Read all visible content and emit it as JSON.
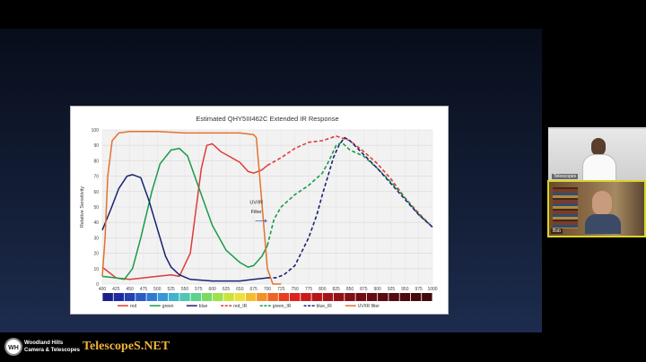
{
  "app": {
    "name": "video-call"
  },
  "slide": {
    "chart_data": {
      "type": "line",
      "title": "Estimated QHY5III462C Extended IR Response",
      "xlabel": "",
      "ylabel": "Relative Sensitivity",
      "xlim": [
        400,
        1000
      ],
      "ylim": [
        0,
        100
      ],
      "x_ticks": [
        "400",
        "425",
        "450",
        "475",
        "500",
        "525",
        "550",
        "575",
        "600",
        "625",
        "650",
        "675",
        "700",
        "725",
        "750",
        "775",
        "800",
        "825",
        "850",
        "875",
        "900",
        "925",
        "950",
        "975",
        "1000"
      ],
      "y_ticks": [
        "0",
        "10",
        "20",
        "30",
        "40",
        "50",
        "60",
        "70",
        "80",
        "90",
        "100"
      ],
      "grid": true,
      "legend_position": "bottom",
      "annotation": {
        "text_line1": "UV/IR",
        "text_line2": "Filter"
      },
      "series": [
        {
          "name": "red",
          "color": "#e03a3a",
          "style": "solid",
          "points": [
            [
              400,
              11
            ],
            [
              425,
              4
            ],
            [
              450,
              3
            ],
            [
              475,
              4
            ],
            [
              500,
              5
            ],
            [
              525,
              6
            ],
            [
              540,
              5
            ],
            [
              560,
              20
            ],
            [
              580,
              75
            ],
            [
              590,
              90
            ],
            [
              600,
              91
            ],
            [
              615,
              86
            ],
            [
              625,
              84
            ],
            [
              650,
              79
            ],
            [
              665,
              73
            ],
            [
              675,
              72
            ],
            [
              690,
              74
            ],
            [
              700,
              77
            ]
          ]
        },
        {
          "name": "green",
          "color": "#1a9a4a",
          "style": "solid",
          "points": [
            [
              400,
              5
            ],
            [
              425,
              4
            ],
            [
              440,
              3
            ],
            [
              455,
              10
            ],
            [
              470,
              30
            ],
            [
              490,
              60
            ],
            [
              505,
              78
            ],
            [
              525,
              87
            ],
            [
              540,
              88
            ],
            [
              555,
              83
            ],
            [
              575,
              63
            ],
            [
              600,
              38
            ],
            [
              625,
              22
            ],
            [
              650,
              14
            ],
            [
              665,
              11
            ],
            [
              675,
              12
            ],
            [
              690,
              18
            ],
            [
              700,
              25
            ]
          ]
        },
        {
          "name": "blue",
          "color": "#1b2370",
          "style": "solid",
          "points": [
            [
              400,
              35
            ],
            [
              415,
              48
            ],
            [
              430,
              62
            ],
            [
              445,
              70
            ],
            [
              455,
              71
            ],
            [
              470,
              69
            ],
            [
              485,
              54
            ],
            [
              500,
              36
            ],
            [
              515,
              18
            ],
            [
              525,
              11
            ],
            [
              540,
              6
            ],
            [
              560,
              3
            ],
            [
              600,
              2
            ],
            [
              650,
              2
            ],
            [
              675,
              3
            ],
            [
              700,
              4
            ]
          ]
        },
        {
          "name": "red_IR",
          "color": "#e03a3a",
          "style": "dashed",
          "points": [
            [
              700,
              77
            ],
            [
              725,
              82
            ],
            [
              750,
              88
            ],
            [
              775,
              92
            ],
            [
              800,
              93
            ],
            [
              825,
              96
            ],
            [
              850,
              93
            ],
            [
              875,
              86
            ],
            [
              900,
              78
            ],
            [
              925,
              68
            ],
            [
              950,
              56
            ],
            [
              975,
              46
            ],
            [
              1000,
              37
            ]
          ]
        },
        {
          "name": "green_IR",
          "color": "#1a9a4a",
          "style": "dashed",
          "points": [
            [
              700,
              25
            ],
            [
              712,
              42
            ],
            [
              725,
              50
            ],
            [
              750,
              58
            ],
            [
              775,
              64
            ],
            [
              800,
              72
            ],
            [
              812,
              80
            ],
            [
              825,
              90
            ],
            [
              835,
              92
            ],
            [
              850,
              87
            ],
            [
              875,
              83
            ],
            [
              900,
              75
            ],
            [
              925,
              66
            ],
            [
              950,
              56
            ],
            [
              975,
              45
            ],
            [
              1000,
              37
            ]
          ]
        },
        {
          "name": "blue_IR",
          "color": "#1b2370",
          "style": "dashed",
          "points": [
            [
              700,
              4
            ],
            [
              715,
              4
            ],
            [
              730,
              6
            ],
            [
              750,
              12
            ],
            [
              775,
              30
            ],
            [
              790,
              45
            ],
            [
              800,
              58
            ],
            [
              810,
              70
            ],
            [
              820,
              82
            ],
            [
              830,
              90
            ],
            [
              840,
              95
            ],
            [
              850,
              93
            ],
            [
              875,
              84
            ],
            [
              900,
              75
            ],
            [
              925,
              65
            ],
            [
              950,
              55
            ],
            [
              975,
              45
            ],
            [
              1000,
              37
            ]
          ]
        },
        {
          "name": "UV/IR filter",
          "color": "#e3722e",
          "style": "solid",
          "points": [
            [
              400,
              5
            ],
            [
              405,
              30
            ],
            [
              410,
              70
            ],
            [
              418,
              93
            ],
            [
              430,
              98
            ],
            [
              450,
              99
            ],
            [
              500,
              99
            ],
            [
              550,
              98
            ],
            [
              600,
              98
            ],
            [
              650,
              98
            ],
            [
              675,
              97
            ],
            [
              680,
              95
            ],
            [
              686,
              70
            ],
            [
              693,
              40
            ],
            [
              700,
              10
            ],
            [
              710,
              0
            ],
            [
              725,
              0
            ]
          ]
        }
      ],
      "colorbar": [
        "#1b1f8a",
        "#1e2aa0",
        "#2540b4",
        "#2a5cc4",
        "#2f7ad0",
        "#3698d6",
        "#3fb3cf",
        "#4fc7b3",
        "#5cd28e",
        "#78db62",
        "#9ee24a",
        "#c8e43b",
        "#ece138",
        "#f6bc2f",
        "#f39128",
        "#ee6424",
        "#e83c20",
        "#dd231d",
        "#cc1a1a",
        "#b8161a",
        "#a61418",
        "#941216",
        "#821014",
        "#720e12",
        "#650d10",
        "#5a0c0f",
        "#520b0e",
        "#4c0a0d",
        "#470a0c",
        "#430a0c"
      ]
    }
  },
  "participants": [
    {
      "name": "Telescopes",
      "active": false
    },
    {
      "name": "Bob",
      "active": true
    }
  ],
  "footer": {
    "logo_initials": "WH",
    "logo_line1": "Woodland Hills",
    "logo_line2": "Camera & Telescopes",
    "brand": "TelescopeS.NET"
  }
}
